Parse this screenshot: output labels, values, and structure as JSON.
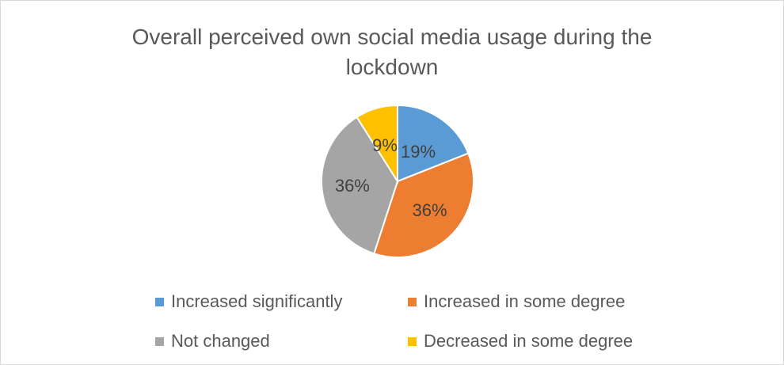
{
  "chart_data": {
    "type": "pie",
    "title": "Overall perceived own social media usage during the lockdown",
    "title_lines": [
      "Overall perceived own social media usage during the",
      "lockdown"
    ],
    "slices": [
      {
        "name": "Increased significantly",
        "value": 19,
        "label": "19%",
        "color": "#5b9bd5"
      },
      {
        "name": "Increased in some degree",
        "value": 36,
        "label": "36%",
        "color": "#ed7d31"
      },
      {
        "name": "Not changed",
        "value": 36,
        "label": "36%",
        "color": "#a5a5a5"
      },
      {
        "name": "Decreased in some degree",
        "value": 9,
        "label": "9%",
        "color": "#ffc000"
      }
    ],
    "legend_position": "bottom"
  }
}
